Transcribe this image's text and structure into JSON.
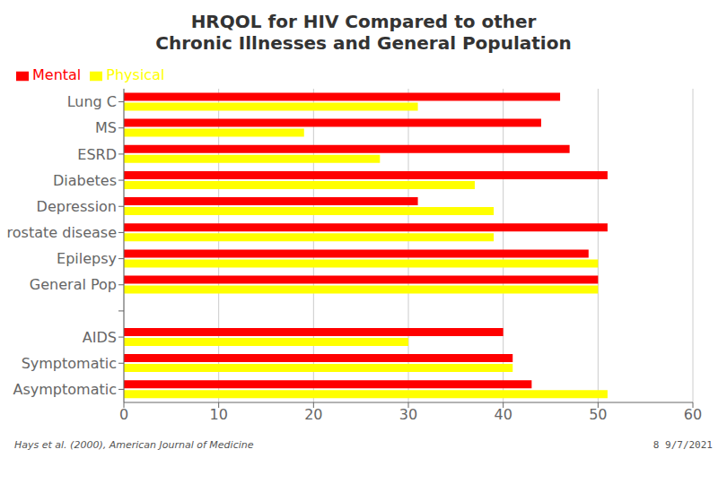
{
  "chart_data": {
    "type": "bar",
    "orientation": "horizontal",
    "title": "HRQOL for HIV Compared to other",
    "subtitle": "Chronic Illnesses and General Population",
    "categories": [
      "Lung C",
      "MS",
      "ESRD",
      "Diabetes",
      "Depression",
      "Prostate disease",
      "Epilepsy",
      "General Pop",
      null,
      "AIDS",
      "Symptomatic",
      "Asymptomatic"
    ],
    "series": [
      {
        "name": "Mental",
        "color": "#FF0000",
        "values": [
          46,
          44,
          47,
          51,
          31,
          51,
          49,
          50,
          null,
          40,
          41,
          43
        ]
      },
      {
        "name": "Physical",
        "color": "#FFFF00",
        "values": [
          31,
          19,
          27,
          37,
          39,
          39,
          50,
          50,
          null,
          30,
          41,
          51
        ]
      }
    ],
    "xlim": [
      0,
      60
    ],
    "xticks": [
      0,
      10,
      20,
      30,
      40,
      50,
      60
    ],
    "grid": true,
    "legend": "upper left",
    "annotations": [
      "Hays et al. (2000), American Journal of Medicine",
      "8 9/7/2021"
    ]
  }
}
